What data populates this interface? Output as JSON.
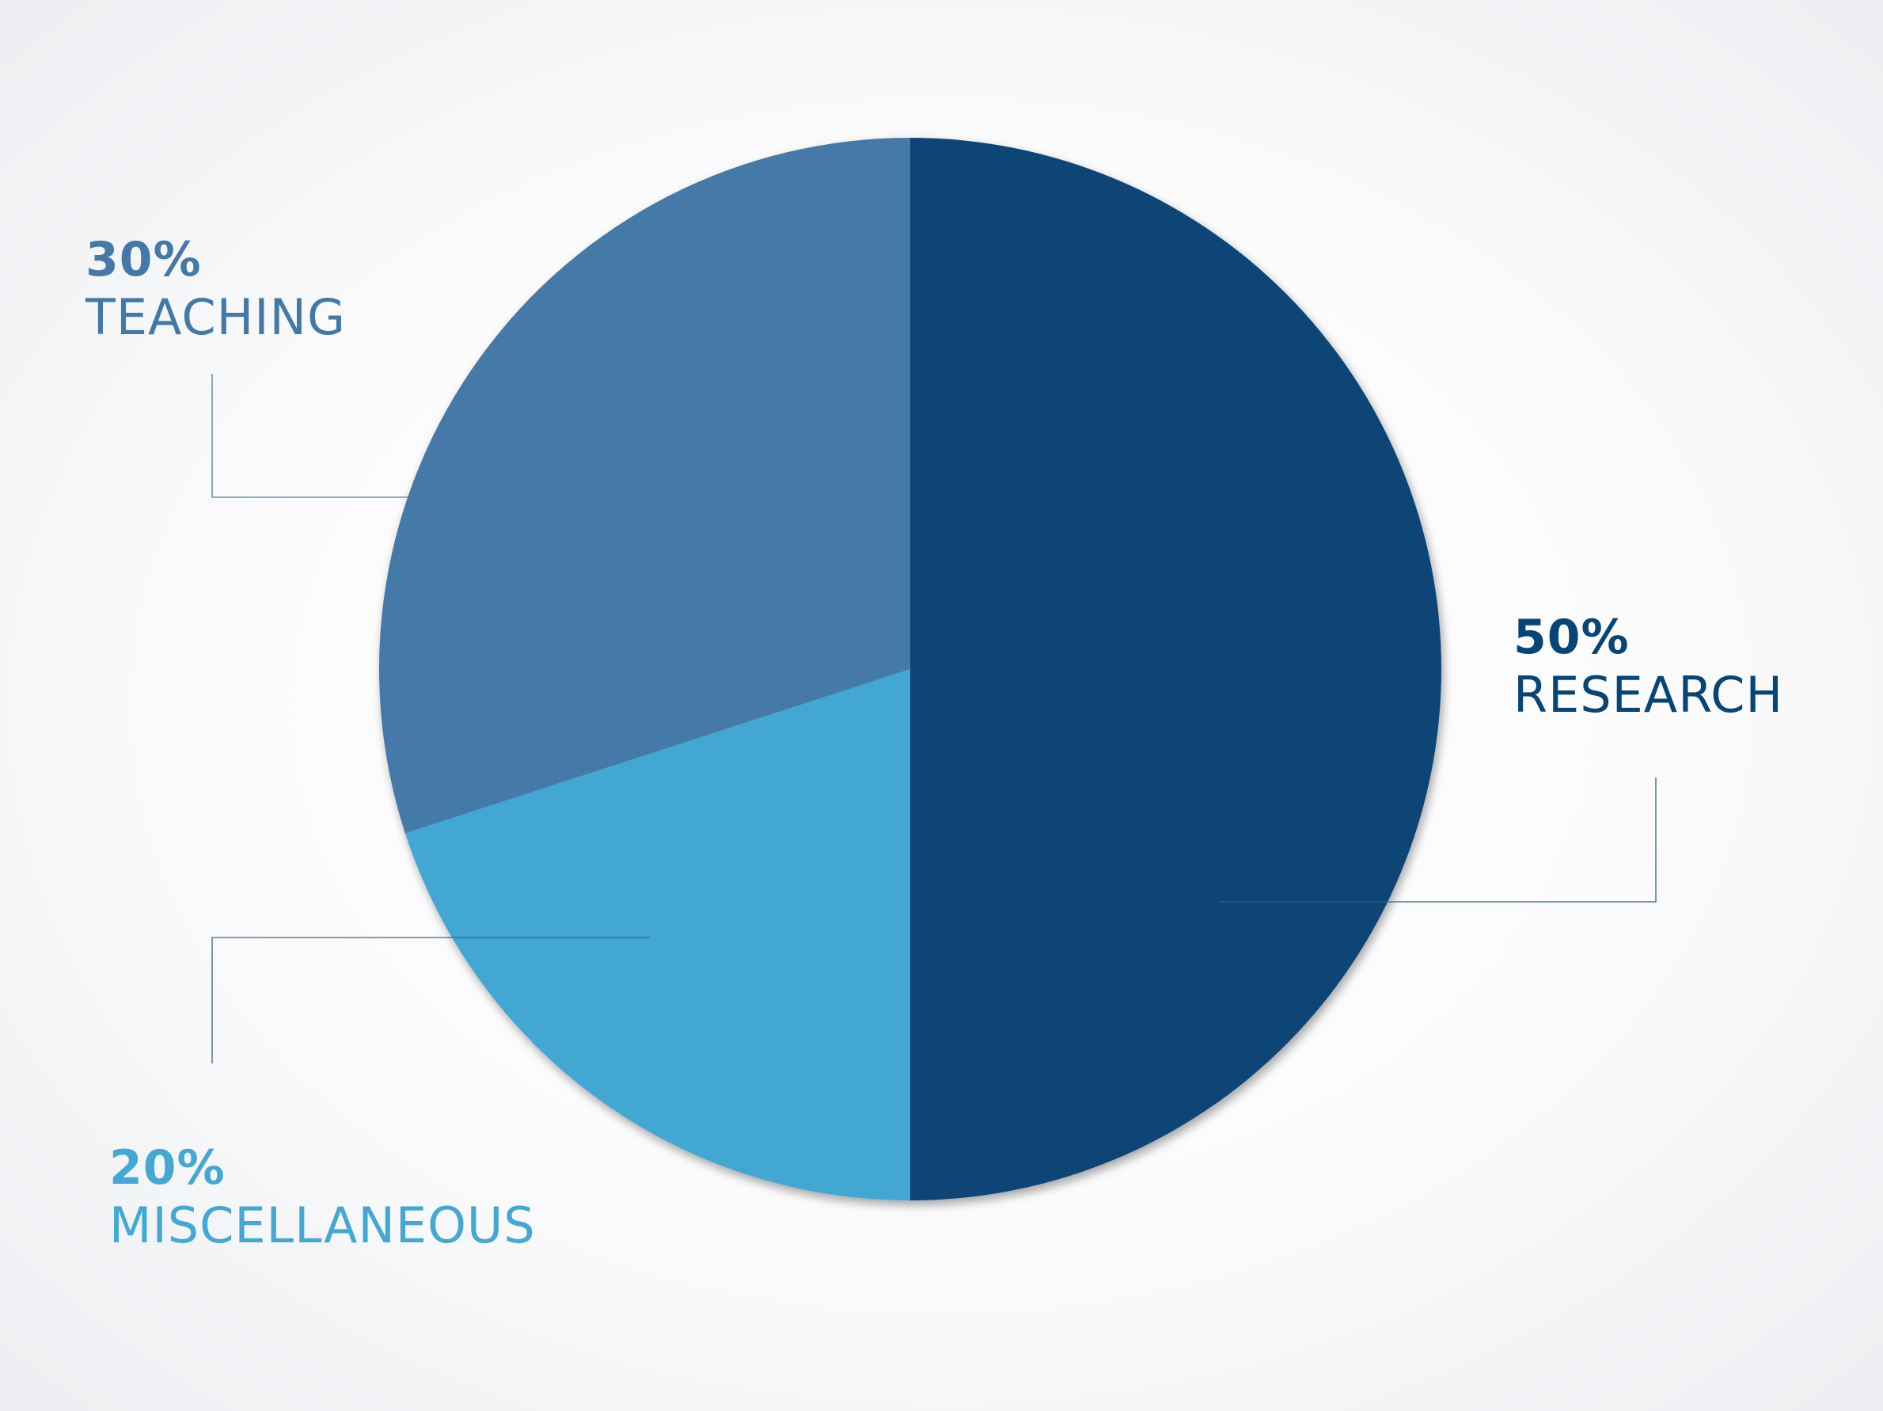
{
  "chart_data": {
    "type": "pie",
    "title": "",
    "slices": [
      {
        "label": "RESEARCH",
        "percent_label": "50%",
        "value": 50,
        "color": "#084577"
      },
      {
        "label": "MISCELLANEOUS",
        "percent_label": "20%",
        "value": 20,
        "color": "#43a8d3"
      },
      {
        "label": "TEACHING",
        "percent_label": "30%",
        "value": 30,
        "color": "#4479a7"
      }
    ],
    "start_angle": "12 o'clock",
    "direction": "clockwise",
    "legend": "none (callout labels with leader lines)"
  }
}
